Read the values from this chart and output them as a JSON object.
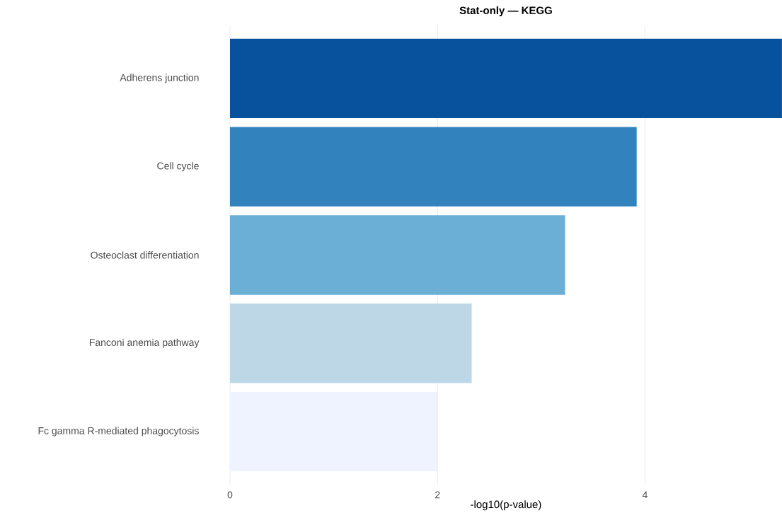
{
  "chart_data": {
    "type": "bar",
    "orientation": "horizontal",
    "title": "Stat-only — KEGG",
    "xlabel": "-log10(p-value)",
    "categories": [
      "Adherens junction",
      "Cell cycle",
      "Osteoclast differentiation",
      "Fanconi anemia pathway",
      "Fc gamma R-mediated phagocytosis"
    ],
    "values": [
      5.32,
      3.92,
      3.23,
      2.33,
      2.0
    ],
    "colors": [
      "#08519c",
      "#3182bd",
      "#6baed6",
      "#bdd7e7",
      "#eff3ff"
    ],
    "xlim": [
      0,
      5.32
    ],
    "xticks": [
      0,
      2,
      4
    ],
    "grid": "x"
  }
}
